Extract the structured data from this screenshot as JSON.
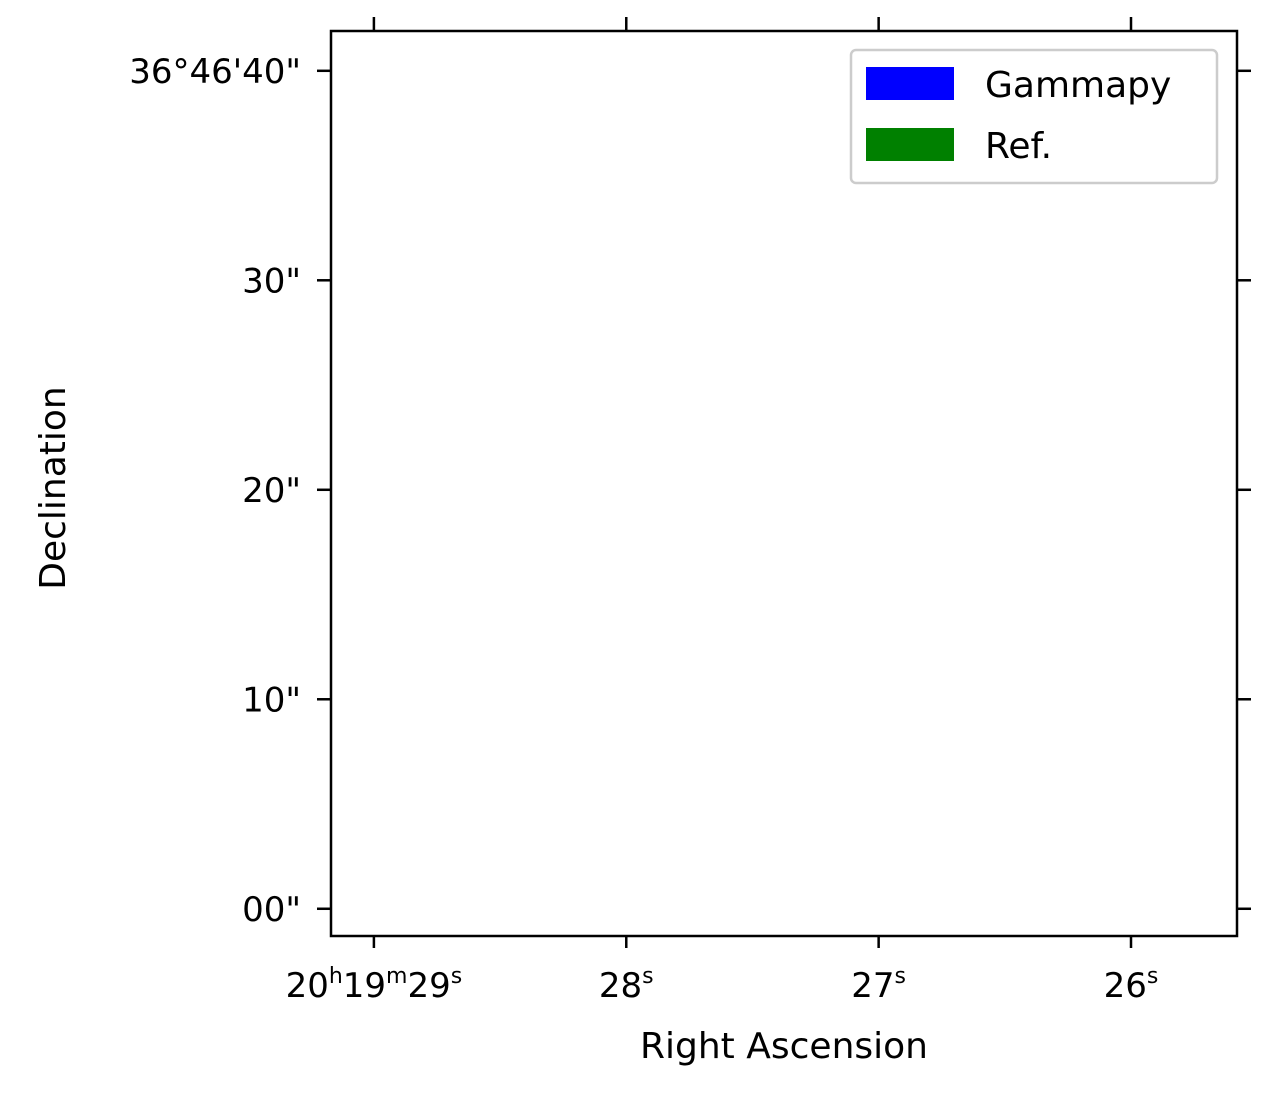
{
  "chart_data": {
    "type": "scatter",
    "title": "",
    "xlabel": "Right Ascension",
    "ylabel": "Declination",
    "x_axis": {
      "unit": "hms",
      "ticks": [
        {
          "value": 29,
          "label": "20ʰ19ᵐ29ˢ",
          "parts": {
            "h": "20",
            "m": "19",
            "s": "29"
          }
        },
        {
          "value": 28,
          "label": "28ˢ",
          "parts": {
            "s": "28"
          }
        },
        {
          "value": 27,
          "label": "27ˢ",
          "parts": {
            "s": "27"
          }
        },
        {
          "value": 26,
          "label": "26ˢ",
          "parts": {
            "s": "26"
          }
        }
      ],
      "range": [
        29.17,
        25.58
      ],
      "inverted": true
    },
    "y_axis": {
      "unit": "arcsec offset from 36°46'00\"",
      "ticks": [
        {
          "value": 0,
          "label": "00\""
        },
        {
          "value": 10,
          "label": "10\""
        },
        {
          "value": 20,
          "label": "20\""
        },
        {
          "value": 30,
          "label": "30\""
        },
        {
          "value": 40,
          "label": "36°46'40\""
        }
      ],
      "range": [
        -1.3,
        41.9
      ]
    },
    "legend": {
      "placement": "top-right",
      "entries": [
        {
          "name": "Gammapy",
          "color": "#0000ff"
        },
        {
          "name": "Ref.",
          "color": "#008000"
        }
      ]
    },
    "series": [
      {
        "name": "Gammapy",
        "color": "#0000ff",
        "points": []
      },
      {
        "name": "Ref.",
        "color": "#008000",
        "points": []
      }
    ],
    "grid": false
  }
}
